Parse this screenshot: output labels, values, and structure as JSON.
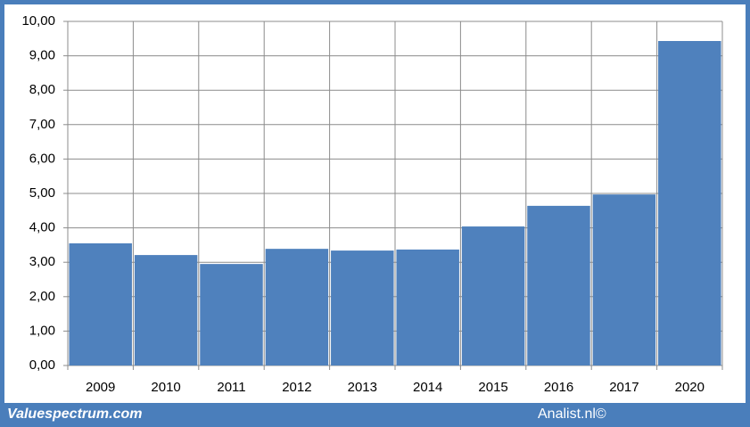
{
  "chart_data": {
    "type": "bar",
    "categories": [
      "2009",
      "2010",
      "2011",
      "2012",
      "2013",
      "2014",
      "2015",
      "2016",
      "2017",
      "2020"
    ],
    "values": [
      3.55,
      3.21,
      2.95,
      3.39,
      3.34,
      3.37,
      4.04,
      4.64,
      4.97,
      9.43
    ],
    "color": "#4f81bd",
    "ylim": [
      0,
      10
    ],
    "yticks": [
      {
        "value": 0,
        "label": "0,00"
      },
      {
        "value": 1,
        "label": "1,00"
      },
      {
        "value": 2,
        "label": "2,00"
      },
      {
        "value": 3,
        "label": "3,00"
      },
      {
        "value": 4,
        "label": "4,00"
      },
      {
        "value": 5,
        "label": "5,00"
      },
      {
        "value": 6,
        "label": "6,00"
      },
      {
        "value": 7,
        "label": "7,00"
      },
      {
        "value": 8,
        "label": "8,00"
      },
      {
        "value": 9,
        "label": "9,00"
      },
      {
        "value": 10,
        "label": "10,00"
      }
    ],
    "grid": true
  },
  "footer": {
    "left": "Valuespectrum.com",
    "right": "Analist.nl©"
  }
}
